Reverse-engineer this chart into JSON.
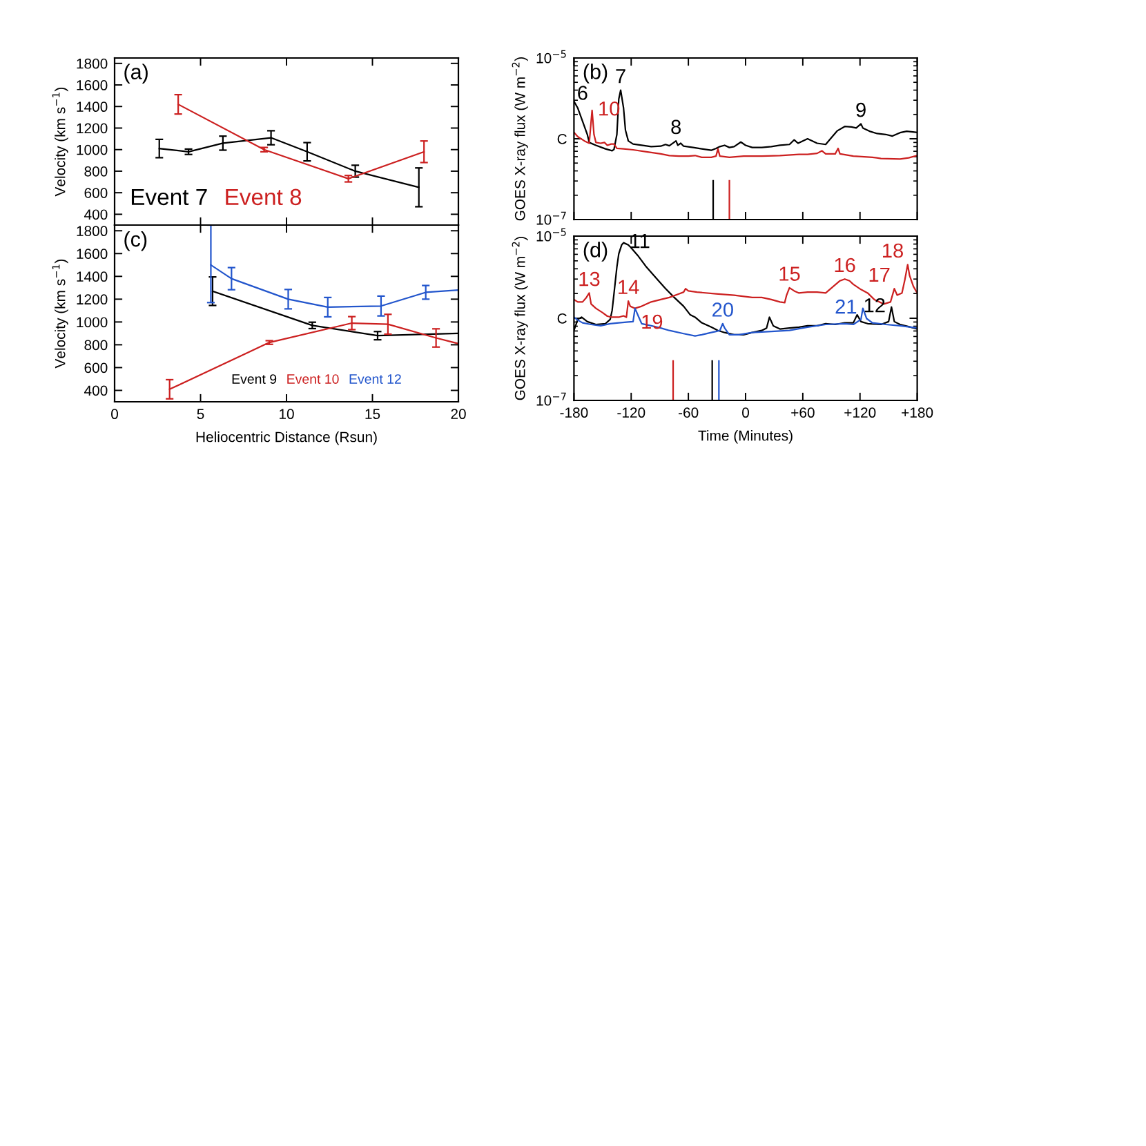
{
  "chart_data": [
    {
      "type": "line",
      "title": "(a)",
      "ylabel": "Velocity (km s$^{−1}$)",
      "xlim": [
        0,
        20
      ],
      "xticks": [
        0,
        5,
        10,
        15,
        20
      ],
      "ylim": [
        300,
        1850
      ],
      "yticks": [
        400,
        600,
        800,
        1000,
        1200,
        1400,
        1600,
        1800
      ],
      "tick_labels": "y",
      "legend": "bottom left",
      "series": [
        {
          "name": "Event 7",
          "color": "#000000",
          "x": [
            2.6,
            4.3,
            6.3,
            9.1,
            11.2,
            14.0,
            17.7
          ],
          "values": [
            1010,
            980,
            1060,
            1110,
            980,
            800,
            650
          ],
          "errors": [
            85,
            25,
            65,
            65,
            85,
            55,
            180
          ]
        },
        {
          "name": "Event 8",
          "color": "#cc2020",
          "x": [
            3.7,
            8.7,
            13.6,
            18.0
          ],
          "values": [
            1420,
            1000,
            730,
            980
          ],
          "errors": [
            90,
            20,
            30,
            100
          ]
        }
      ]
    },
    {
      "type": "line",
      "title": "(b)",
      "ylabel": "GOES X-ray flux (W m$^{−2}$)",
      "log": "y",
      "xlim": [
        -180,
        180
      ],
      "xticks": [
        -180,
        -120,
        -60,
        0,
        60,
        120,
        180
      ],
      "ylim": [
        1e-07,
        1e-05
      ],
      "yticks": [
        {
          "value": 1e-05,
          "label": "10$^{−5}$"
        },
        {
          "value": 1e-06,
          "label": "C"
        },
        {
          "value": 1e-07,
          "label": "10$^{−7}$"
        }
      ],
      "tick_labels": "y",
      "series": [
        {
          "color": "#000000",
          "x": [
            -180,
            -176,
            -171,
            -166,
            -164,
            -157,
            -147,
            -140,
            -138,
            -135,
            -133,
            -131,
            -128,
            -126,
            -123,
            -118,
            -109,
            -99,
            -89,
            -84,
            -80,
            -73,
            -71,
            -68,
            -65,
            -55,
            -46,
            -36,
            -31,
            -27,
            -22,
            -17,
            -12,
            -5,
            0,
            7,
            17,
            27,
            36,
            46,
            51,
            55,
            60,
            65,
            70,
            75,
            84,
            89,
            96,
            104,
            111,
            116,
            121,
            123,
            130,
            138,
            147,
            154,
            162,
            169,
            180
          ],
          "values": [
            2.9e-06,
            2.4e-06,
            1.65e-06,
            1.13e-06,
            9e-07,
            8.3e-07,
            7.5e-07,
            7.1e-07,
            7.4e-07,
            1.13e-06,
            3.1e-06,
            4e-06,
            2.4e-06,
            1.28e-06,
            9.4e-07,
            8.6e-07,
            8.3e-07,
            8e-07,
            8.1e-07,
            8.5e-07,
            8.2e-07,
            9.4e-07,
            8.3e-07,
            8.8e-07,
            8.1e-07,
            7.8e-07,
            7.5e-07,
            7.2e-07,
            7.6e-07,
            8e-07,
            8.3e-07,
            7.8e-07,
            8e-07,
            9.1e-07,
            8.3e-07,
            7.8e-07,
            7.8e-07,
            8e-07,
            8.3e-07,
            8.5e-07,
            9.7e-07,
            8.8e-07,
            9.4e-07,
            1e-06,
            9.4e-07,
            8.8e-07,
            8.5e-07,
            1e-06,
            1.25e-06,
            1.42e-06,
            1.4e-06,
            1.36e-06,
            1.53e-06,
            1.36e-06,
            1.24e-06,
            1.16e-06,
            1.13e-06,
            1.08e-06,
            1.19e-06,
            1.24e-06,
            1.2e-06
          ]
        },
        {
          "color": "#cc2020",
          "x": [
            -180,
            -176,
            -169,
            -164,
            -161,
            -159,
            -157,
            -152,
            -148,
            -145,
            -141,
            -138,
            -135,
            -128,
            -118,
            -104,
            -89,
            -80,
            -70,
            -60,
            -53,
            -46,
            -36,
            -31,
            -29,
            -27,
            -17,
            -2,
            17,
            36,
            56,
            65,
            75,
            80,
            84,
            94,
            97,
            99,
            113,
            133,
            142,
            162,
            171,
            180
          ],
          "values": [
            1.2e-06,
            1.06e-06,
            9.4e-07,
            8.8e-07,
            2.25e-06,
            1.13e-06,
            9e-07,
            8.8e-07,
            9e-07,
            8.3e-07,
            8.6e-07,
            8.6e-07,
            7.6e-07,
            7.5e-07,
            7.3e-07,
            6.9e-07,
            6.5e-07,
            6.2e-07,
            6.1e-07,
            6.1e-07,
            6.2e-07,
            5.9e-07,
            5.9e-07,
            6.1e-07,
            7.5e-07,
            6.1e-07,
            5.9e-07,
            6.1e-07,
            6.1e-07,
            6.2e-07,
            6.4e-07,
            6.4e-07,
            6.6e-07,
            7.1e-07,
            6.5e-07,
            6.5e-07,
            7.6e-07,
            6.5e-07,
            6.1e-07,
            5.9e-07,
            5.7e-07,
            5.6e-07,
            5.8e-07,
            6.2e-07
          ]
        }
      ],
      "ref_lines": [
        {
          "axis": "x",
          "value": -34,
          "color": "#000000"
        },
        {
          "axis": "x",
          "value": -17,
          "color": "#cc2020"
        }
      ],
      "annotations": [
        {
          "text": "6",
          "x": -171,
          "y": 1.65e-06
        },
        {
          "text": "10",
          "x": -161,
          "y": 2.25e-06
        },
        {
          "text": "7",
          "x": -131,
          "y": 4e-06
        },
        {
          "text": "8",
          "x": -73,
          "y": 9.4e-07
        },
        {
          "text": "9",
          "x": 121,
          "y": 1.53e-06
        }
      ]
    },
    {
      "type": "line",
      "title": "(c)",
      "xlabel": "Heliocentric Distance (Rsun)",
      "ylabel": "Velocity (km s$^{−1}$)",
      "xlim": [
        0,
        20
      ],
      "xticks": [
        0,
        5,
        10,
        15,
        20
      ],
      "ylim": [
        300,
        1850
      ],
      "yticks": [
        400,
        600,
        800,
        1000,
        1200,
        1400,
        1600,
        1800
      ],
      "legend": "bottom right",
      "series": [
        {
          "name": "Event 9",
          "color": "#000000",
          "x": [
            5.7,
            11.5,
            15.3,
            20
          ],
          "values": [
            1270,
            970,
            880,
            900
          ],
          "errors": [
            125,
            28,
            36,
            null
          ]
        },
        {
          "name": "Event 10",
          "color": "#cc2020",
          "x": [
            3.2,
            9.0,
            13.8,
            15.9,
            18.7,
            20
          ],
          "values": [
            410,
            820,
            990,
            980,
            860,
            810
          ],
          "errors": [
            84,
            16,
            57,
            87,
            80,
            null
          ]
        },
        {
          "name": "Event 12",
          "color": "#2255cc",
          "x": [
            5.6,
            6.8,
            10.1,
            12.4,
            15.5,
            18.1,
            20
          ],
          "values": [
            1500,
            1380,
            1200,
            1130,
            1140,
            1260,
            1280
          ],
          "errors": [
            [
              1170,
              1850
            ],
            97,
            85,
            85,
            87,
            60,
            null
          ]
        }
      ]
    },
    {
      "type": "line",
      "title": "(d)",
      "xlabel": "Time (Minutes)",
      "ylabel": "GOES X-ray flux (W m$^{−2}$)",
      "log": "y",
      "xlim": [
        -180,
        180
      ],
      "xticks": [
        -180,
        -120,
        -60,
        0,
        {
          "value": 60,
          "label": "+60"
        },
        {
          "value": 120,
          "label": "+120"
        },
        {
          "value": 180,
          "label": "+180"
        }
      ],
      "ylim": [
        1e-07,
        1e-05
      ],
      "yticks": [
        {
          "value": 1e-05,
          "label": "10$^{−5}$"
        },
        {
          "value": 1e-06,
          "label": "C"
        },
        {
          "value": 1e-07,
          "label": "10$^{−7}$"
        }
      ],
      "series": [
        {
          "color": "#000000",
          "x": [
            -180,
            -176,
            -172,
            -166,
            -157,
            -147,
            -142,
            -140,
            -138,
            -135,
            -133,
            -130,
            -128,
            -123,
            -121,
            -113,
            -104,
            -94,
            -84,
            -75,
            -65,
            -58,
            -53,
            -46,
            -36,
            -29,
            -22,
            -12,
            -2,
            7,
            17,
            22,
            25,
            29,
            36,
            46,
            56,
            65,
            75,
            84,
            94,
            104,
            113,
            117,
            121,
            128,
            142,
            150,
            153,
            156,
            162,
            171,
            180
          ],
          "values": [
            7.1e-07,
            9.7e-07,
            1.03e-06,
            9.1e-07,
            8.4e-07,
            8.6e-07,
            9.7e-07,
            1.24e-06,
            2e-06,
            4.2e-06,
            6.1e-06,
            7.8e-06,
            8.3e-06,
            7.8e-06,
            7.4e-06,
            5.8e-06,
            4.2e-06,
            3.1e-06,
            2.3e-06,
            1.8e-06,
            1.4e-06,
            1.1e-06,
            1.03e-06,
            8.8e-07,
            7.8e-07,
            7.1e-07,
            6.7e-07,
            6.3e-07,
            6.3e-07,
            6.7e-07,
            7.1e-07,
            7.6e-07,
            1.03e-06,
            8.1e-07,
            7.4e-07,
            7.6e-07,
            7.8e-07,
            8.1e-07,
            8.1e-07,
            8.6e-07,
            8.4e-07,
            8.8e-07,
            8.8e-07,
            1.1e-06,
            9.1e-07,
            8.6e-07,
            8.4e-07,
            9.1e-07,
            1.37e-06,
            9.1e-07,
            8.4e-07,
            7.9e-07,
            7.4e-07
          ]
        },
        {
          "color": "#cc2020",
          "x": [
            -180,
            -176,
            -171,
            -167,
            -164,
            -162,
            -157,
            -150,
            -145,
            -140,
            -133,
            -128,
            -125,
            -123,
            -121,
            -116,
            -109,
            -99,
            -89,
            -80,
            -70,
            -65,
            -63,
            -60,
            -51,
            -31,
            -12,
            7,
            17,
            27,
            36,
            41,
            43,
            46,
            51,
            56,
            65,
            75,
            84,
            92,
            99,
            104,
            109,
            113,
            121,
            128,
            135,
            145,
            152,
            156,
            159,
            164,
            167,
            170,
            172,
            176,
            180
          ],
          "values": [
            1.69e-06,
            1.58e-06,
            1.58e-06,
            1.79e-06,
            2.03e-06,
            1.49e-06,
            1.32e-06,
            1.17e-06,
            1.06e-06,
            1.03e-06,
            1.03e-06,
            1.07e-06,
            1.03e-06,
            1.62e-06,
            1.4e-06,
            1.32e-06,
            1.4e-06,
            1.58e-06,
            1.69e-06,
            1.79e-06,
            1.98e-06,
            2.08e-06,
            2.29e-06,
            2.15e-06,
            2.08e-06,
            1.98e-06,
            1.91e-06,
            1.79e-06,
            1.79e-06,
            1.69e-06,
            1.58e-06,
            1.55e-06,
            1.91e-06,
            2.35e-06,
            2.15e-06,
            2.03e-06,
            2.08e-06,
            2.08e-06,
            2.03e-06,
            2.44e-06,
            2.86e-06,
            3e-06,
            2.86e-06,
            2.59e-06,
            2.24e-06,
            2.03e-06,
            1.69e-06,
            1.49e-06,
            1.58e-06,
            2.29e-06,
            1.91e-06,
            2.03e-06,
            2.93e-06,
            4.5e-06,
            3.31e-06,
            2.44e-06,
            2.03e-06
          ]
        },
        {
          "color": "#2255cc",
          "x": [
            -180,
            -176,
            -171,
            -162,
            -152,
            -142,
            -133,
            -123,
            -118,
            -116,
            -112,
            -109,
            -99,
            -89,
            -80,
            -65,
            -53,
            -46,
            -36,
            -31,
            -27,
            -24,
            -22,
            -17,
            -7,
            7,
            27,
            46,
            65,
            84,
            104,
            113,
            121,
            123,
            127,
            133,
            147,
            162,
            180
          ],
          "values": [
            1.03e-06,
            9.5e-07,
            8.8e-07,
            8.4e-07,
            8.1e-07,
            8.6e-07,
            8.8e-07,
            9e-07,
            9.1e-07,
            1.32e-06,
            1.03e-06,
            8.6e-07,
            8.1e-07,
            7.6e-07,
            7.1e-07,
            6.5e-07,
            6.1e-07,
            6.3e-07,
            6.7e-07,
            6.9e-07,
            7.1e-07,
            8.6e-07,
            7.6e-07,
            6.3e-07,
            6.3e-07,
            6.7e-07,
            6.9e-07,
            7.1e-07,
            7.8e-07,
            8.4e-07,
            8.6e-07,
            8.4e-07,
            9.7e-07,
            1.32e-06,
            9.9e-07,
            8.8e-07,
            8.4e-07,
            8.1e-07,
            7.6e-07
          ]
        }
      ],
      "ref_lines": [
        {
          "axis": "x",
          "value": -76,
          "color": "#cc2020"
        },
        {
          "axis": "x",
          "value": -35,
          "color": "#000000"
        },
        {
          "axis": "x",
          "value": -28,
          "color": "#2255cc"
        }
      ],
      "annotations": [
        {
          "text": "13",
          "x": -164,
          "y": 2.03e-06
        },
        {
          "text": "11",
          "x": -128,
          "y": 8.3e-06
        },
        {
          "text": "14",
          "x": -123,
          "y": 1.62e-06
        },
        {
          "text": "19",
          "x": -116,
          "y": 1.32e-06
        },
        {
          "text": "20",
          "x": -24,
          "y": 8.6e-07
        },
        {
          "text": "15",
          "x": 46,
          "y": 2.35e-06
        },
        {
          "text": "16",
          "x": 104,
          "y": 3e-06
        },
        {
          "text": "18",
          "x": 170,
          "y": 4.5e-06
        },
        {
          "text": "17",
          "x": 156,
          "y": 2.29e-06
        },
        {
          "text": "21",
          "x": 123,
          "y": 1.32e-06
        },
        {
          "text": "12",
          "x": 153,
          "y": 1.37e-06
        }
      ]
    }
  ]
}
